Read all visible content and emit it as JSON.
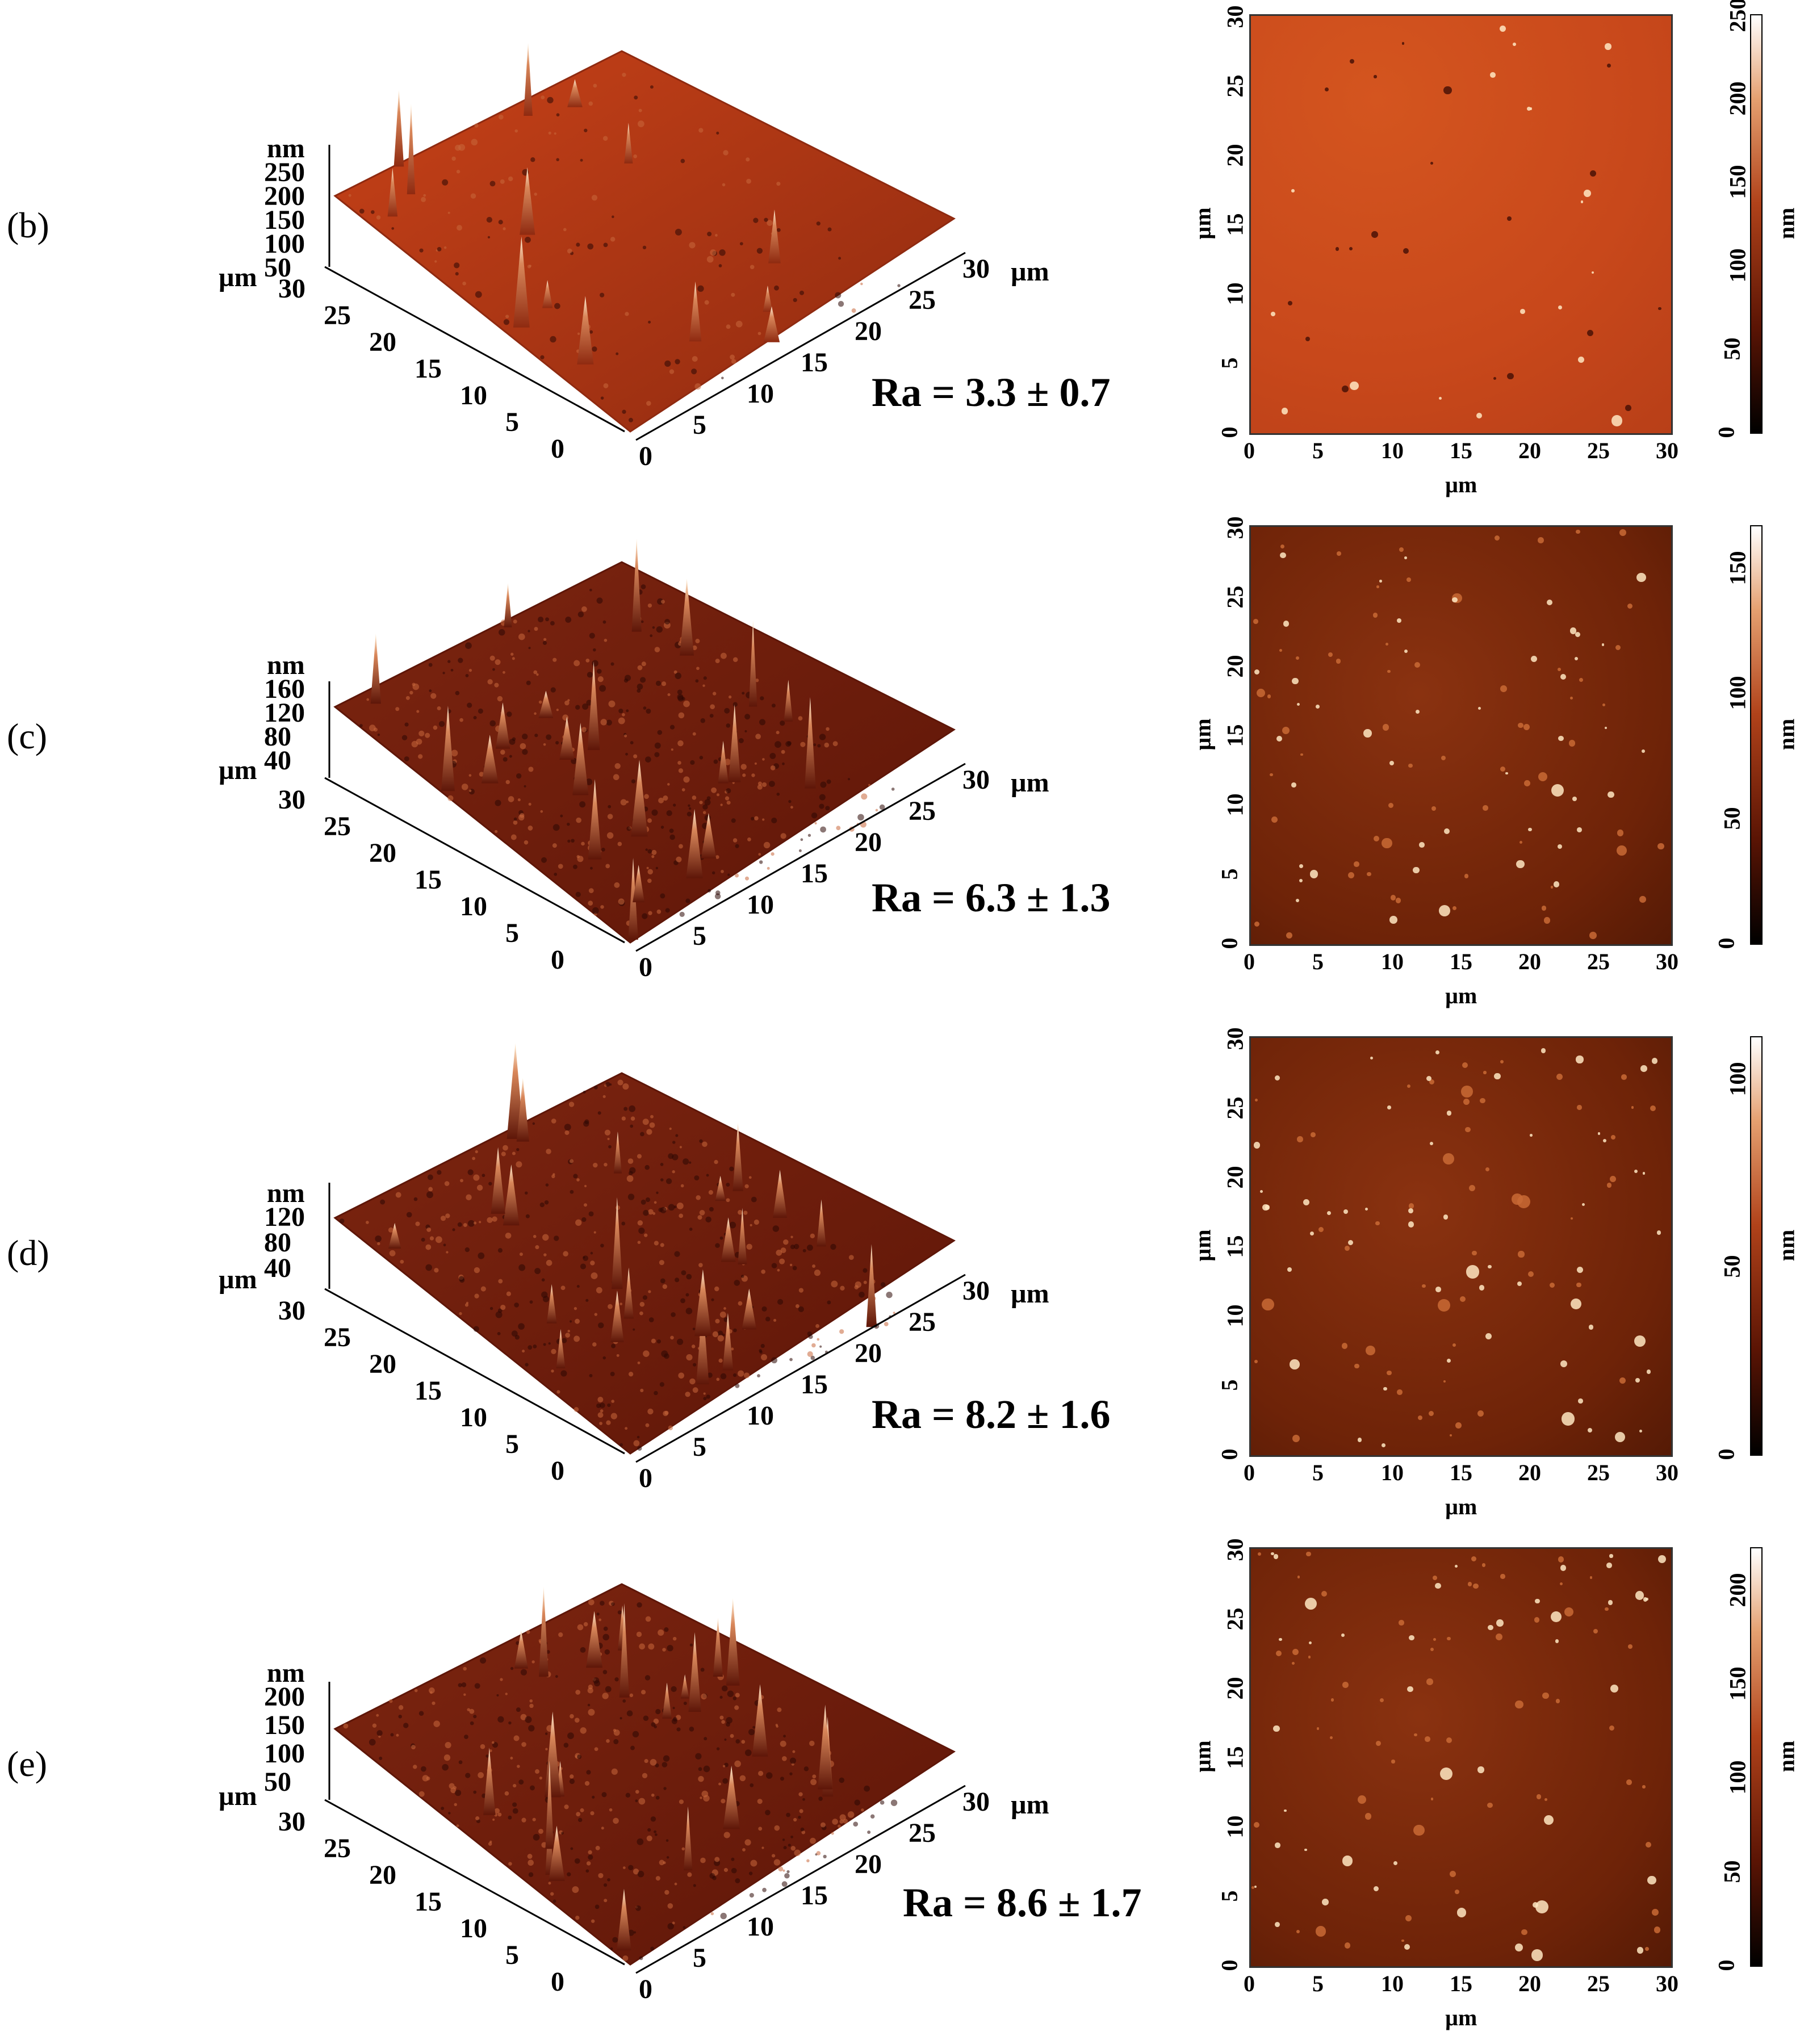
{
  "colors": {
    "surface_b": "#c84218",
    "surface_dark": "#5e1608",
    "map_b": "#c8481b",
    "map_dark": "#6e2308",
    "highlight": "#ffe7c2"
  },
  "panels": [
    {
      "label": "(b)",
      "ra": "Ra = 3.3 ± 0.7",
      "z_unit": "nm",
      "z_ticks": [
        "250",
        "200",
        "150",
        "100",
        "50"
      ],
      "colorbar_ticks": [
        "250",
        "200",
        "150",
        "100",
        "50",
        "0"
      ]
    },
    {
      "label": "(c)",
      "ra": "Ra = 6.3 ± 1.3",
      "z_unit": "nm",
      "z_ticks": [
        "160",
        "120",
        "80",
        "40"
      ],
      "colorbar_ticks": [
        "150",
        "100",
        "50",
        "0"
      ]
    },
    {
      "label": "(d)",
      "ra": "Ra = 8.2 ± 1.6",
      "z_unit": "nm",
      "z_ticks": [
        "120",
        "80",
        "40"
      ],
      "colorbar_ticks": [
        "100",
        "50",
        "0"
      ]
    },
    {
      "label": "(e)",
      "ra": "Ra = 8.6 ± 1.7",
      "z_unit": "nm",
      "z_ticks": [
        "200",
        "150",
        "100",
        "50"
      ],
      "colorbar_ticks": [
        "200",
        "150",
        "100",
        "50",
        "0"
      ]
    }
  ],
  "axes": {
    "unit": "µm",
    "left_axis_ticks": [
      "30",
      "25",
      "20",
      "15",
      "10",
      "5",
      "0"
    ],
    "right_axis_ticks": [
      "0",
      "5",
      "10",
      "15",
      "20",
      "25",
      "30"
    ],
    "map_ticks": [
      "0",
      "5",
      "10",
      "15",
      "20",
      "25",
      "30"
    ],
    "colorbar_unit": "nm"
  }
}
